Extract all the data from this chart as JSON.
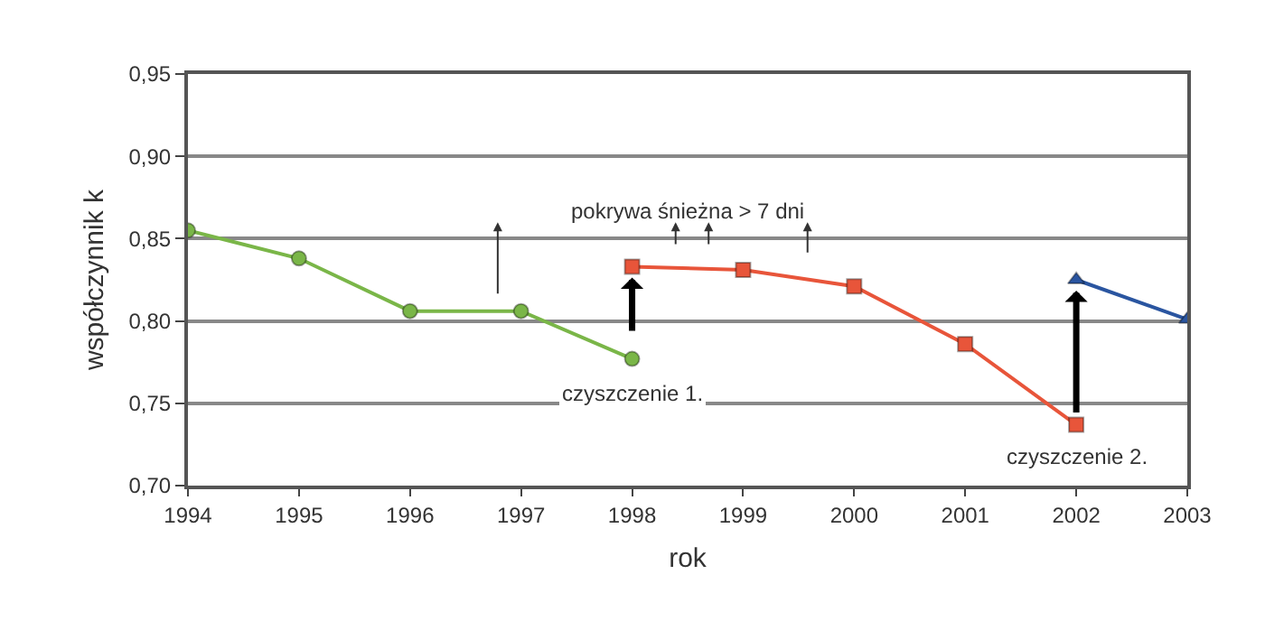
{
  "chart_data": {
    "type": "line",
    "xlabel": "rok",
    "ylabel": "współczynnik k",
    "xlim": [
      1994,
      2003
    ],
    "xticks": [
      1994,
      1995,
      1996,
      1997,
      1998,
      1999,
      2000,
      2001,
      2002,
      2003
    ],
    "ylim": [
      0.7,
      0.95
    ],
    "yticks": [
      {
        "value": 0.7,
        "label": "0,70"
      },
      {
        "value": 0.75,
        "label": "0,75"
      },
      {
        "value": 0.8,
        "label": "0,80"
      },
      {
        "value": 0.85,
        "label": "0,85"
      },
      {
        "value": 0.9,
        "label": "0,90"
      },
      {
        "value": 0.95,
        "label": "0,95"
      }
    ],
    "grid": "y",
    "line_style": "solid",
    "series": [
      {
        "color": "#7ab648",
        "marker": "circle",
        "x": [
          1994,
          1995,
          1996,
          1997,
          1998
        ],
        "values": [
          0.855,
          0.838,
          0.806,
          0.806,
          0.777
        ]
      },
      {
        "color": "#e8553a",
        "marker": "square",
        "x": [
          1998,
          1999,
          2000,
          2001,
          2002
        ],
        "values": [
          0.833,
          0.831,
          0.821,
          0.786,
          0.737
        ]
      },
      {
        "color": "#2a55a0",
        "marker": "triangle",
        "x": [
          2002,
          2003
        ],
        "values": [
          0.825,
          0.801
        ]
      }
    ],
    "annotations": [
      "pokrywa śnieżna > 7 dni",
      {
        "text": "czyszczenie 1.",
        "x": 1998,
        "y": 0.833
      },
      {
        "text": "czyszczenie 2.",
        "x": 2002,
        "y": 0.825
      }
    ]
  }
}
